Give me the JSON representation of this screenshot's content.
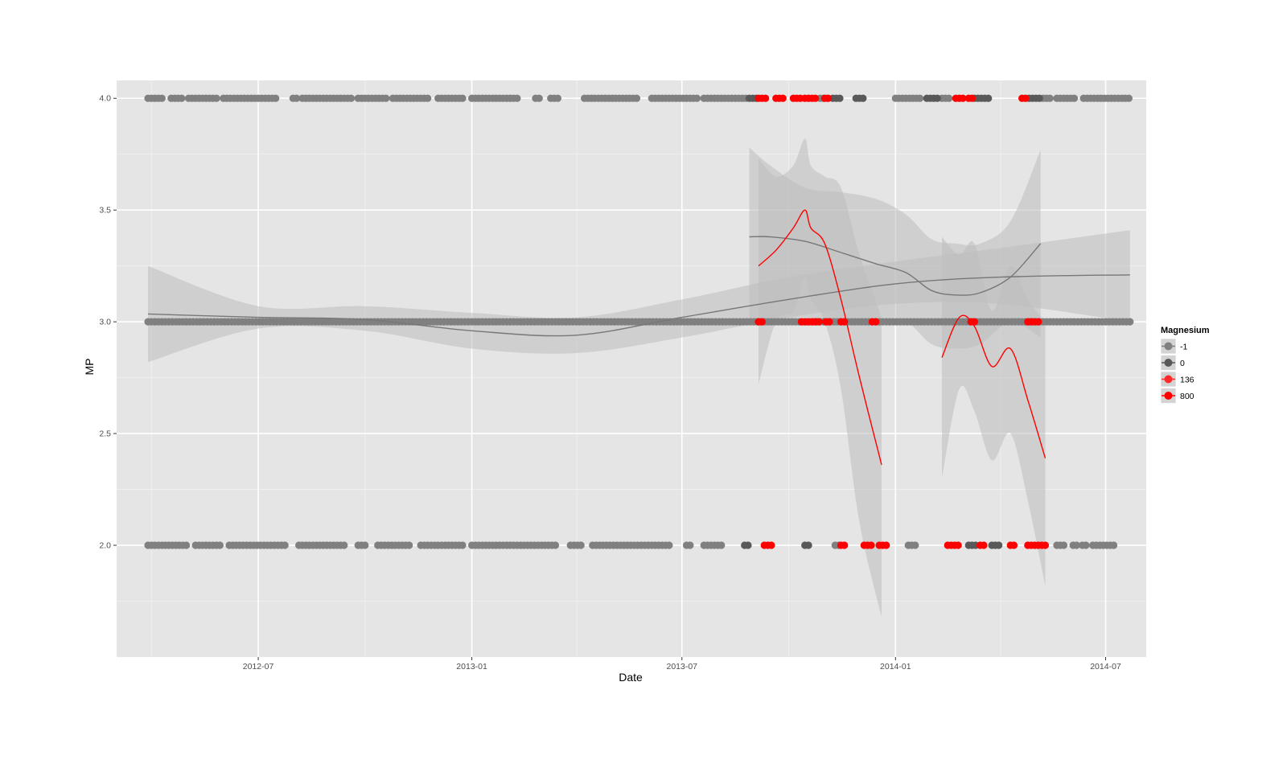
{
  "chart_data": {
    "type": "scatter",
    "title": "",
    "xlabel": "Date",
    "ylabel": "MP",
    "x_type": "date",
    "xlim": [
      "2012-03-01",
      "2014-08-05"
    ],
    "ylim": [
      1.5,
      4.08
    ],
    "x_ticks": [
      "2012-07",
      "2013-01",
      "2013-07",
      "2014-01",
      "2014-07"
    ],
    "y_ticks": [
      "2.0",
      "2.5",
      "3.0",
      "3.5",
      "4.0"
    ],
    "grid": true,
    "legend": {
      "title": "Magnesium",
      "placement": "right",
      "entries": [
        {
          "label": "-1",
          "color": "#808080"
        },
        {
          "label": "0",
          "color": "#595959"
        },
        {
          "label": "136",
          "color": "#ff2a2a"
        },
        {
          "label": "800",
          "color": "#ff0000"
        }
      ]
    },
    "colors": {
      "panel": "#e5e5e5",
      "grid_major": "#ffffff",
      "grid_minor": "#f2f2f2",
      "ribbon": "#bdbdbd",
      "grey_line": "#777777",
      "red_line": "#ff0000"
    },
    "point_strips": [
      {
        "y": 4.0,
        "group": "-1",
        "ranges": [
          [
            "2012-03-28",
            "2012-04-09"
          ],
          [
            "2012-04-17",
            "2012-04-27"
          ],
          [
            "2012-05-02",
            "2012-05-28"
          ],
          [
            "2012-06-01",
            "2012-07-17"
          ],
          [
            "2012-07-31",
            "2012-08-03"
          ],
          [
            "2012-08-08",
            "2012-09-20"
          ],
          [
            "2012-09-25",
            "2012-10-20"
          ],
          [
            "2012-10-25",
            "2012-11-25"
          ],
          [
            "2012-12-03",
            "2012-12-25"
          ],
          [
            "2013-01-01",
            "2013-02-10"
          ],
          [
            "2013-02-25",
            "2013-03-01"
          ],
          [
            "2013-03-10",
            "2013-03-17"
          ],
          [
            "2013-04-08",
            "2013-05-25"
          ],
          [
            "2013-06-05",
            "2013-07-15"
          ],
          [
            "2013-07-20",
            "2013-08-25"
          ],
          [
            "2013-10-28",
            "2013-11-05"
          ],
          [
            "2014-01-01",
            "2014-01-22"
          ],
          [
            "2014-02-10",
            "2014-02-18"
          ],
          [
            "2014-05-08",
            "2014-05-15"
          ],
          [
            "2014-05-20",
            "2014-06-05"
          ],
          [
            "2014-06-12",
            "2014-07-21"
          ]
        ]
      },
      {
        "y": 4.0,
        "group": "0",
        "ranges": [
          [
            "2013-08-28",
            "2013-09-04"
          ],
          [
            "2013-11-08",
            "2013-11-14"
          ],
          [
            "2013-11-28",
            "2013-12-04"
          ],
          [
            "2014-01-28",
            "2014-02-06"
          ],
          [
            "2014-03-10",
            "2014-03-22"
          ],
          [
            "2014-04-26",
            "2014-05-06"
          ]
        ]
      },
      {
        "y": 4.0,
        "group": "800",
        "ranges": [
          [
            "2013-09-05",
            "2013-09-12"
          ],
          [
            "2013-09-20",
            "2013-09-26"
          ],
          [
            "2013-10-05",
            "2013-10-11"
          ],
          [
            "2013-10-15",
            "2013-10-26"
          ],
          [
            "2013-11-01",
            "2013-11-06"
          ],
          [
            "2014-02-22",
            "2014-03-02"
          ],
          [
            "2014-03-05",
            "2014-03-08"
          ],
          [
            "2014-04-20",
            "2014-04-24"
          ]
        ]
      },
      {
        "y": 3.0,
        "group": "-1",
        "ranges": [
          [
            "2012-03-28",
            "2014-07-22"
          ]
        ]
      },
      {
        "y": 3.0,
        "group": "800",
        "ranges": [
          [
            "2013-09-05",
            "2013-09-08"
          ],
          [
            "2013-10-12",
            "2013-10-28"
          ],
          [
            "2013-11-02",
            "2013-11-06"
          ],
          [
            "2013-11-15",
            "2013-11-20"
          ],
          [
            "2013-12-12",
            "2013-12-15"
          ],
          [
            "2014-03-07",
            "2014-03-10"
          ],
          [
            "2014-04-25",
            "2014-05-06"
          ]
        ]
      },
      {
        "y": 2.0,
        "group": "-1",
        "ranges": [
          [
            "2012-03-28",
            "2012-05-02"
          ],
          [
            "2012-05-08",
            "2012-05-30"
          ],
          [
            "2012-06-06",
            "2012-07-26"
          ],
          [
            "2012-08-05",
            "2012-09-15"
          ],
          [
            "2012-09-25",
            "2012-10-03"
          ],
          [
            "2012-10-12",
            "2012-11-08"
          ],
          [
            "2012-11-18",
            "2012-12-25"
          ],
          [
            "2013-01-01",
            "2013-03-15"
          ],
          [
            "2013-03-27",
            "2013-04-05"
          ],
          [
            "2013-04-15",
            "2013-06-20"
          ],
          [
            "2013-07-05",
            "2013-07-10"
          ],
          [
            "2013-07-20",
            "2013-08-05"
          ],
          [
            "2013-11-10",
            "2013-11-14"
          ],
          [
            "2014-01-12",
            "2014-01-18"
          ],
          [
            "2014-05-20",
            "2014-05-27"
          ],
          [
            "2014-06-03",
            "2014-06-06"
          ],
          [
            "2014-06-11",
            "2014-06-15"
          ],
          [
            "2014-06-20",
            "2014-07-10"
          ]
        ]
      },
      {
        "y": 2.0,
        "group": "0",
        "ranges": [
          [
            "2013-08-24",
            "2013-08-28"
          ],
          [
            "2013-10-15",
            "2013-10-18"
          ],
          [
            "2014-03-05",
            "2014-03-12"
          ],
          [
            "2014-03-25",
            "2014-04-02"
          ]
        ]
      },
      {
        "y": 2.0,
        "group": "800",
        "ranges": [
          [
            "2013-09-10",
            "2013-09-18"
          ],
          [
            "2013-11-15",
            "2013-11-20"
          ],
          [
            "2013-12-05",
            "2013-12-12"
          ],
          [
            "2013-12-18",
            "2013-12-26"
          ],
          [
            "2014-02-15",
            "2014-02-25"
          ],
          [
            "2014-03-15",
            "2014-03-20"
          ],
          [
            "2014-04-10",
            "2014-04-15"
          ],
          [
            "2014-04-25",
            "2014-05-10"
          ]
        ]
      }
    ],
    "series": [
      {
        "group": "-1",
        "x": [
          "2012-03-28",
          "2012-07-01",
          "2012-10-01",
          "2013-01-01",
          "2013-04-01",
          "2013-07-01",
          "2013-10-01",
          "2014-01-01",
          "2014-04-01",
          "2014-07-22"
        ],
        "y": [
          3.035,
          3.02,
          3.01,
          2.96,
          2.94,
          3.02,
          3.1,
          3.17,
          3.2,
          3.21
        ],
        "lower": [
          2.82,
          2.97,
          2.96,
          2.88,
          2.86,
          2.93,
          3.02,
          3.08,
          3.08,
          3.0
        ],
        "upper": [
          3.25,
          3.07,
          3.07,
          3.04,
          3.02,
          3.1,
          3.2,
          3.27,
          3.33,
          3.41
        ]
      },
      {
        "group": "0",
        "x": [
          "2013-08-28",
          "2013-09-15",
          "2013-10-15",
          "2013-11-15",
          "2013-12-15",
          "2014-01-10",
          "2014-02-01",
          "2014-02-22",
          "2014-03-15",
          "2014-04-10",
          "2014-05-06"
        ],
        "y": [
          3.38,
          3.38,
          3.36,
          3.31,
          3.26,
          3.22,
          3.14,
          3.12,
          3.13,
          3.2,
          3.35
        ],
        "lower": [
          3.0,
          3.0,
          3.02,
          3.0,
          3.0,
          3.0,
          2.9,
          2.88,
          2.9,
          3.0,
          2.93
        ],
        "upper": [
          3.78,
          3.7,
          3.6,
          3.58,
          3.55,
          3.48,
          3.37,
          3.35,
          3.35,
          3.45,
          3.77
        ]
      },
      {
        "group": "800",
        "x": [
          "2013-09-05",
          "2013-09-20",
          "2013-10-05",
          "2013-10-15",
          "2013-10-20",
          "2013-11-01",
          "2013-11-15",
          "2013-12-01",
          "2013-12-20"
        ],
        "y": [
          3.25,
          3.32,
          3.42,
          3.5,
          3.42,
          3.35,
          3.1,
          2.75,
          2.36
        ],
        "lower": [
          2.72,
          3.0,
          3.05,
          3.2,
          3.1,
          3.0,
          2.7,
          2.1,
          1.68
        ],
        "upper": [
          3.73,
          3.65,
          3.7,
          3.82,
          3.7,
          3.65,
          3.6,
          3.3,
          3.02
        ]
      },
      {
        "group": "800",
        "x": [
          "2014-02-10",
          "2014-02-25",
          "2014-03-10",
          "2014-03-25",
          "2014-04-10",
          "2014-04-25",
          "2014-05-10"
        ],
        "y": [
          2.84,
          3.02,
          2.98,
          2.8,
          2.88,
          2.65,
          2.39
        ],
        "lower": [
          2.3,
          2.7,
          2.6,
          2.38,
          2.5,
          2.2,
          1.82
        ],
        "upper": [
          3.38,
          3.3,
          3.35,
          3.05,
          3.25,
          3.1,
          3.0
        ]
      }
    ]
  }
}
